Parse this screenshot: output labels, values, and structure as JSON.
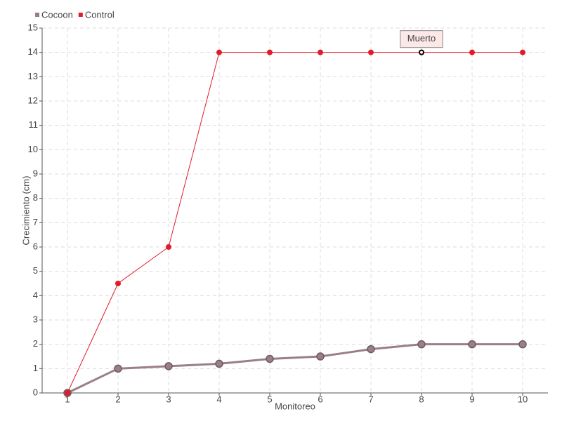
{
  "chart_data": {
    "type": "line",
    "x": [
      1,
      2,
      3,
      4,
      5,
      6,
      7,
      8,
      9,
      10
    ],
    "xlim": [
      0.5,
      10.5
    ],
    "xticks": [
      1,
      2,
      3,
      4,
      5,
      6,
      7,
      8,
      9,
      10
    ],
    "ylim": [
      0,
      15
    ],
    "yticks": [
      0,
      1,
      2,
      3,
      4,
      5,
      6,
      7,
      8,
      9,
      10,
      11,
      12,
      13,
      14,
      15
    ],
    "x_label": "Monitoreo",
    "y_label": "Crecimiento (cm)",
    "grid": true,
    "legend": "top-left",
    "series": [
      {
        "name": "Cocoon",
        "color": "#9a7f86",
        "values": [
          0,
          1,
          1.1,
          1.2,
          1.4,
          1.5,
          1.8,
          2,
          2,
          2
        ]
      },
      {
        "name": "Control",
        "color": "#e31a2a",
        "values": [
          0,
          4.5,
          6,
          14,
          14,
          14,
          14,
          14,
          14,
          14
        ]
      }
    ],
    "annotations": [
      {
        "text": "Muerto",
        "x": 8,
        "y": 14
      }
    ]
  }
}
